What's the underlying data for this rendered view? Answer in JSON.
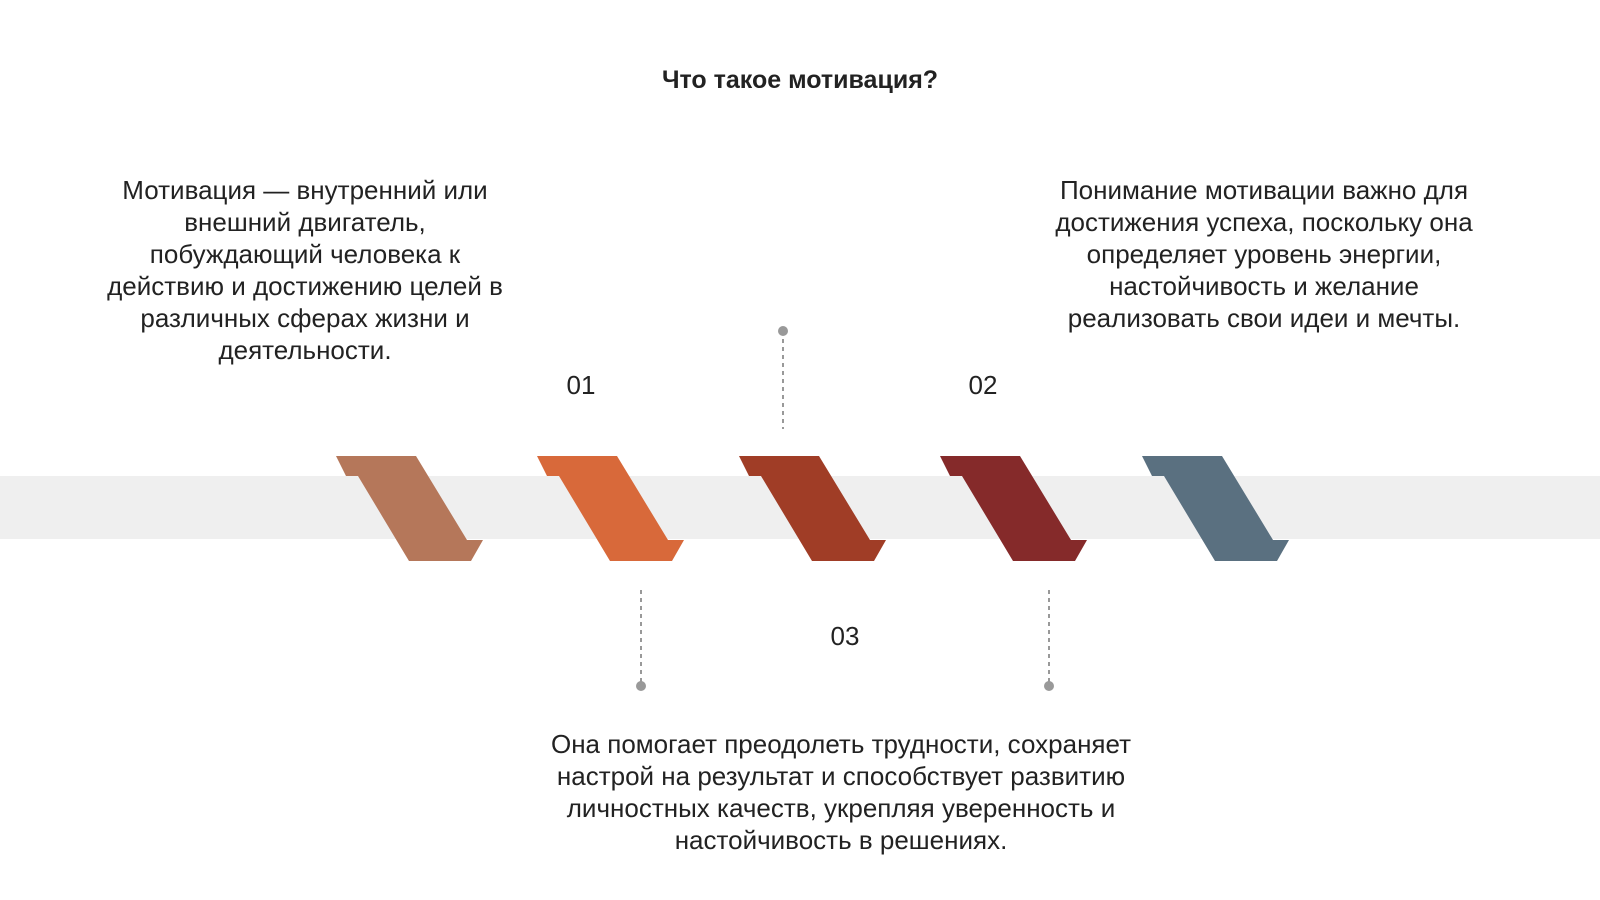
{
  "header": {
    "title": "Что такое мотивация?"
  },
  "blocks": [
    {
      "number": "01",
      "lines": [
        "Мотивация — внутренний или",
        "внешний двигатель,",
        "побуждающий человека к",
        "действию и достижению целей в",
        "различных сферах жизни и",
        "деятельности."
      ]
    },
    {
      "number": "02",
      "lines": [
        "Понимание мотивации важно для",
        "достижения успеха, поскольку она",
        "определяет уровень энергии,",
        "настойчивость и желание",
        "реализовать свои идеи и мечты."
      ]
    },
    {
      "number": "03",
      "lines": [
        "Она помогает преодолеть трудности, сохраняет",
        "настрой на результат и способствует развитию",
        "личностных качеств, укрепляя уверенность и",
        "настойчивость в решениях."
      ]
    }
  ]
}
